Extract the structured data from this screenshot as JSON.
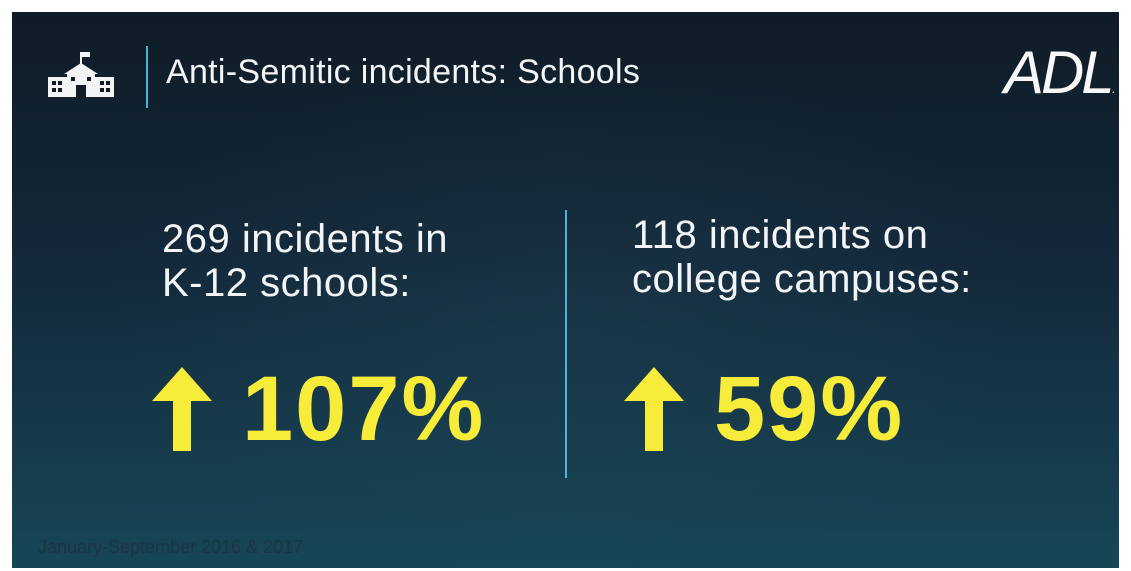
{
  "header": {
    "title": "Anti-Semitic incidents: Schools",
    "icon": "school-building-icon"
  },
  "logo": {
    "text": "ADL",
    "mark": "."
  },
  "stats": [
    {
      "label_lines": [
        "269 incidents in",
        "K-12 schools:"
      ],
      "value": "107%",
      "icon": "up-arrow-icon"
    },
    {
      "label_lines": [
        "118 incidents on",
        "college campuses:"
      ],
      "value": "59%",
      "icon": "up-arrow-icon"
    }
  ],
  "footnote": "January-September 2016 & 2017",
  "colors": {
    "accent_yellow": "#f7ec3a",
    "divider_blue": "#4fb5d3",
    "background_dark": "#0f1c27",
    "background_teal": "#164757",
    "text_white": "#f2f4f6"
  }
}
